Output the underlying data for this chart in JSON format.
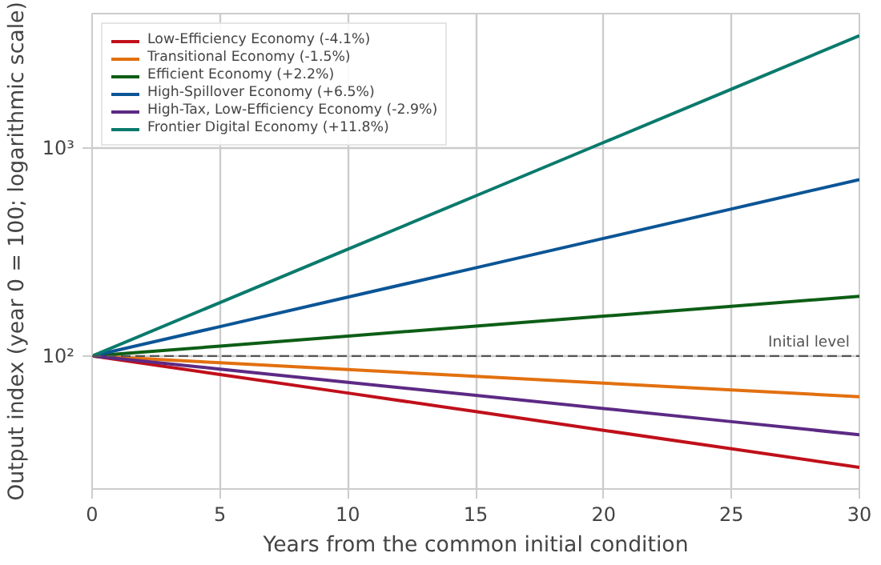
{
  "chart_data": {
    "type": "line",
    "xlabel": "Years from the common initial condition",
    "ylabel": "Output index (year 0 = 100; logarithmic scale)",
    "x": [
      0,
      5,
      10,
      15,
      20,
      25,
      30
    ],
    "series": [
      {
        "name": "Low-Efficiency Economy (-4.1%)",
        "color": "#c0101a",
        "values": [
          100,
          81.5,
          66.4,
          54.1,
          44.0,
          35.9,
          29.2
        ]
      },
      {
        "name": "Transitional Economy (-1.5%)",
        "color": "#e2700f",
        "values": [
          100,
          92.8,
          86.1,
          79.9,
          74.1,
          68.7,
          63.8
        ]
      },
      {
        "name": "Efficient Economy (+2.2%)",
        "color": "#0d5e16",
        "values": [
          100,
          111.6,
          124.6,
          139.1,
          155.3,
          173.3,
          193.5
        ]
      },
      {
        "name": "High-Spillover Economy (+6.5%)",
        "color": "#0b5596",
        "values": [
          100,
          138.4,
          191.6,
          265.1,
          366.9,
          507.8,
          702.9
        ]
      },
      {
        "name": "High-Tax, Low-Efficiency Economy (-2.9%)",
        "color": "#5c2a84",
        "values": [
          100,
          86.5,
          74.8,
          64.7,
          56.0,
          48.4,
          41.9
        ]
      },
      {
        "name": "Frontier Digital Economy (+11.8%)",
        "color": "#0a7a6c",
        "values": [
          100,
          180.4,
          325.4,
          587.1,
          1059,
          1911,
          3447
        ]
      }
    ],
    "xlim": [
      0,
      30
    ],
    "xticks": [
      0,
      5,
      10,
      15,
      20,
      25,
      30
    ],
    "ylim": [
      23,
      4400
    ],
    "yticks": [
      {
        "value": 100,
        "label": "10²"
      },
      {
        "value": 1000,
        "label": "10³"
      }
    ],
    "log": "y",
    "grid": true,
    "legend": "top left",
    "line_style": "solid",
    "ref_lines": [
      {
        "axis": "y",
        "value": 100,
        "label": "Initial level",
        "color": "#555555",
        "line_style": "dashed"
      }
    ]
  }
}
